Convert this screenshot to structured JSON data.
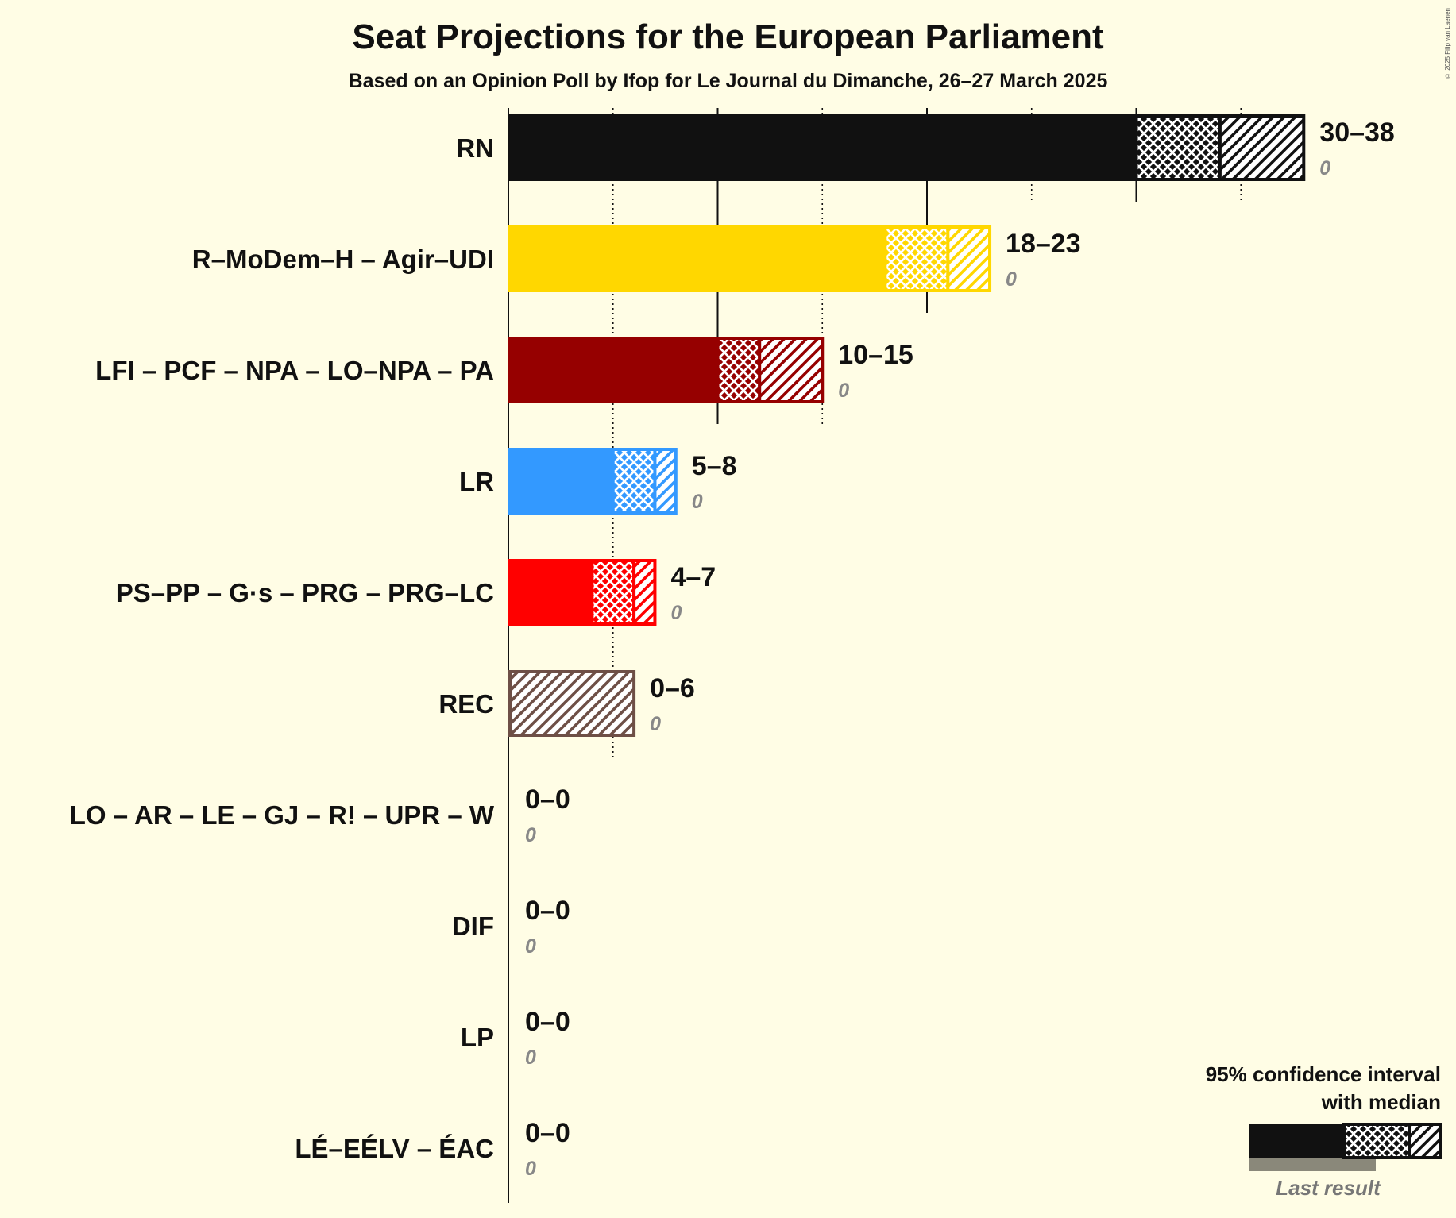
{
  "title": "Seat Projections for the European Parliament",
  "subtitle": "Based on an Opinion Poll by Ifop for Le Journal du Dimanche, 26–27 March 2025",
  "copyright": "© 2025 Filip van Laenen",
  "legend": {
    "title_line1": "95% confidence interval",
    "title_line2": "with median",
    "last_result": "Last result"
  },
  "chart_data": {
    "type": "bar",
    "orientation": "horizontal",
    "title": "Seat Projections for the European Parliament",
    "subtitle": "Based on an Opinion Poll by Ifop for Le Journal du Dimanche, 26–27 March 2025",
    "xlabel": "",
    "ylabel": "",
    "xlim": [
      0,
      40
    ],
    "grid": "vertical lines every 5 seats (solid every 10, dotted at odd multiples of 5)",
    "legend_position": "bottom-right",
    "categories": [
      "RN",
      "R–MoDem–H – Agir–UDI",
      "LFI – PCF – NPA – LO–NPA – PA",
      "LR",
      "PS–PP – G·s – PRG – PRG–LC",
      "REC",
      "LO – AR – LE – GJ – R! – UPR – W",
      "DIF",
      "LP",
      "LÉ–EÉLV – ÉAC"
    ],
    "series": [
      {
        "party": "RN",
        "low": 30,
        "median": 34,
        "high": 38,
        "range_label": "30–38",
        "last_result": 0,
        "last_label": "0",
        "color": "#111111"
      },
      {
        "party": "R–MoDem–H – Agir–UDI",
        "low": 18,
        "median": 21,
        "high": 23,
        "range_label": "18–23",
        "last_result": 0,
        "last_label": "0",
        "color": "#FFD700"
      },
      {
        "party": "LFI – PCF – NPA – LO–NPA – PA",
        "low": 10,
        "median": 12,
        "high": 15,
        "range_label": "10–15",
        "last_result": 0,
        "last_label": "0",
        "color": "#960000"
      },
      {
        "party": "LR",
        "low": 5,
        "median": 7,
        "high": 8,
        "range_label": "5–8",
        "last_result": 0,
        "last_label": "0",
        "color": "#3399FF"
      },
      {
        "party": "PS–PP – G·s – PRG – PRG–LC",
        "low": 4,
        "median": 6,
        "high": 7,
        "range_label": "4–7",
        "last_result": 0,
        "last_label": "0",
        "color": "#FF0000"
      },
      {
        "party": "REC",
        "low": 0,
        "median": 0,
        "high": 6,
        "range_label": "0–6",
        "last_result": 0,
        "last_label": "0",
        "color": "#6E4F46"
      },
      {
        "party": "LO – AR – LE – GJ – R! – UPR – W",
        "low": 0,
        "median": 0,
        "high": 0,
        "range_label": "0–0",
        "last_result": 0,
        "last_label": "0",
        "color": "#111111"
      },
      {
        "party": "DIF",
        "low": 0,
        "median": 0,
        "high": 0,
        "range_label": "0–0",
        "last_result": 0,
        "last_label": "0",
        "color": "#111111"
      },
      {
        "party": "LP",
        "low": 0,
        "median": 0,
        "high": 0,
        "range_label": "0–0",
        "last_result": 0,
        "last_label": "0",
        "color": "#111111"
      },
      {
        "party": "LÉ–EÉLV – ÉAC",
        "low": 0,
        "median": 0,
        "high": 0,
        "range_label": "0–0",
        "last_result": 0,
        "last_label": "0",
        "color": "#111111"
      }
    ]
  }
}
